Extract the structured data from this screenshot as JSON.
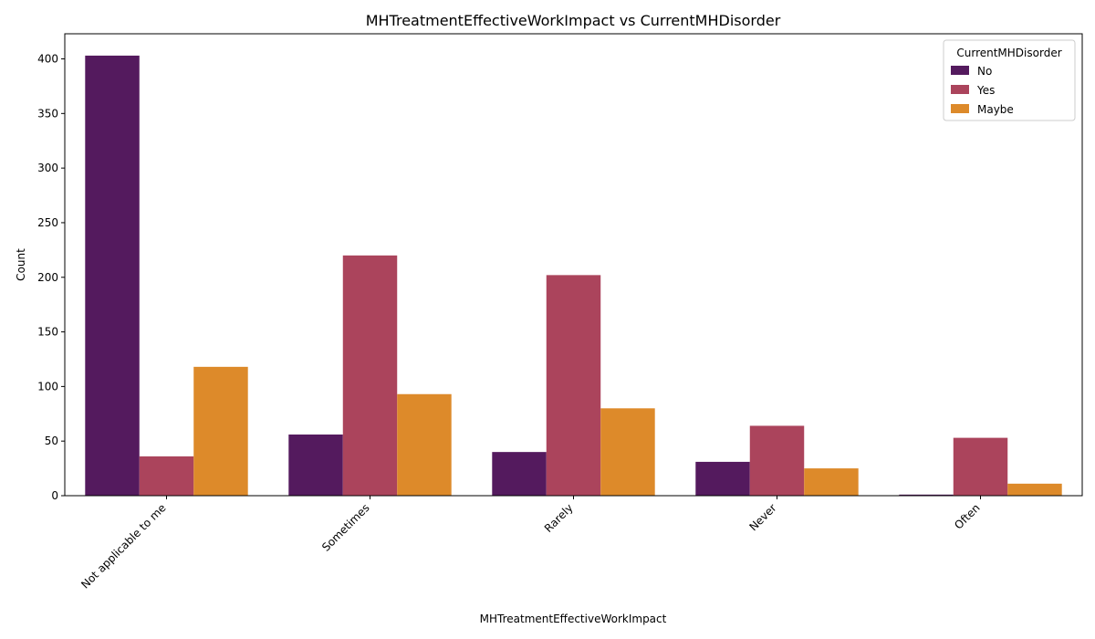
{
  "chart_data": {
    "type": "bar",
    "title": "MHTreatmentEffectiveWorkImpact vs CurrentMHDisorder",
    "xlabel": "MHTreatmentEffectiveWorkImpact",
    "ylabel": "Count",
    "categories": [
      "Not applicable to me",
      "Sometimes",
      "Rarely",
      "Never",
      "Often"
    ],
    "series": [
      {
        "name": "No",
        "color": "#541a5e",
        "values": [
          403,
          56,
          40,
          31,
          1
        ]
      },
      {
        "name": "Yes",
        "color": "#ab445c",
        "values": [
          36,
          220,
          202,
          64,
          53
        ]
      },
      {
        "name": "Maybe",
        "color": "#dd8a2a",
        "values": [
          118,
          93,
          80,
          25,
          11
        ]
      }
    ],
    "ylim": [
      0,
      423
    ],
    "yticks": [
      0,
      50,
      100,
      150,
      200,
      250,
      300,
      350,
      400
    ],
    "legend": {
      "title": "CurrentMHDisorder",
      "placement": "top-right"
    },
    "grid": false
  }
}
